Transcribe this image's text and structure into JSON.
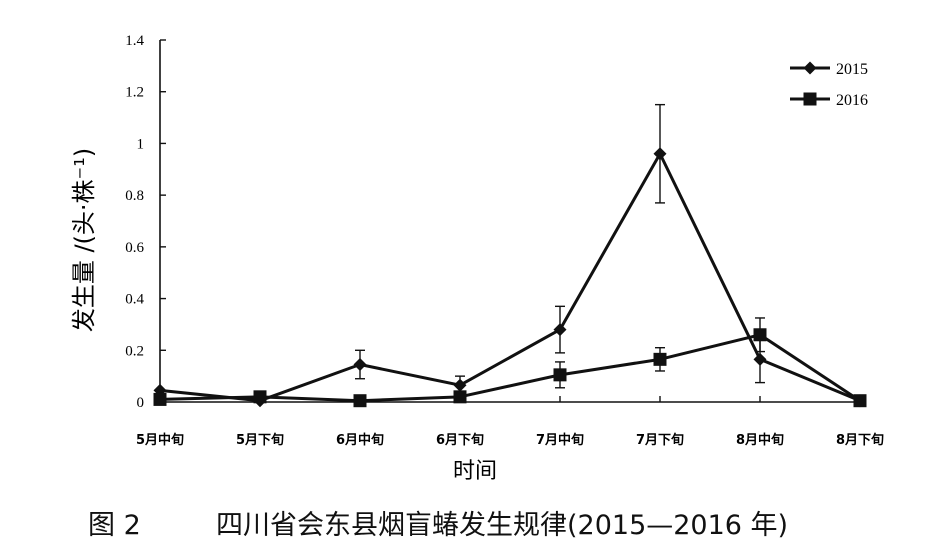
{
  "chart_data": {
    "type": "line",
    "categories": [
      "5月中旬",
      "5月下旬",
      "6月中旬",
      "6月下旬",
      "7月中旬",
      "7月下旬",
      "8月中旬",
      "8月下旬"
    ],
    "series": [
      {
        "name": "2015",
        "marker": "diamond",
        "values": [
          0.045,
          0.005,
          0.145,
          0.065,
          0.28,
          0.96,
          0.165,
          0.005
        ],
        "errors": [
          0.0,
          0.0,
          0.055,
          0.035,
          0.09,
          0.19,
          0.09,
          0.0
        ]
      },
      {
        "name": "2016",
        "marker": "square",
        "values": [
          0.01,
          0.02,
          0.005,
          0.02,
          0.105,
          0.165,
          0.26,
          0.005
        ],
        "errors": [
          0.0,
          0.0,
          0.0,
          0.0,
          0.05,
          0.045,
          0.065,
          0.0
        ]
      }
    ],
    "ylabel": "发生量 /(头·株⁻¹)",
    "xlabel": "时间",
    "ylim": [
      0,
      1.4
    ],
    "yticks": [
      "0",
      "0.2",
      "0.4",
      "0.6",
      "0.8",
      "1",
      "1.2",
      "1.4"
    ],
    "grid": false,
    "legend_position": "top-right",
    "line_color": "#111111"
  },
  "caption": {
    "figure_number": "图 2",
    "title": "四川省会东县烟盲蝽发生规律(2015—2016 年)"
  }
}
